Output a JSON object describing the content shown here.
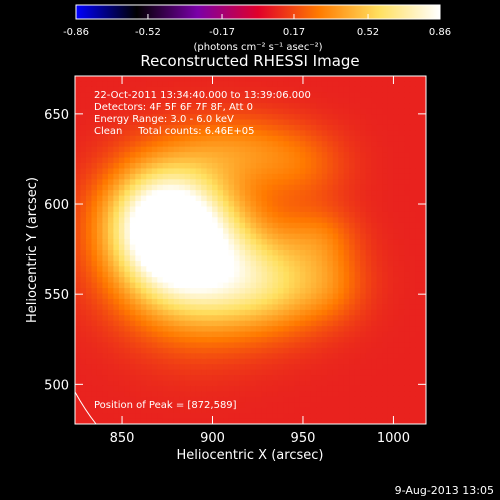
{
  "chart_data": {
    "type": "heatmap",
    "title": "Reconstructed RHESSI Image",
    "xlabel": "Heliocentric X (arcsec)",
    "ylabel": "Heliocentric Y (arcsec)",
    "xlim": [
      824,
      1018
    ],
    "ylim": [
      478,
      671
    ],
    "x_ticks": [
      850,
      900,
      950,
      1000
    ],
    "y_ticks": [
      500,
      550,
      600,
      650
    ],
    "colorbar": {
      "min": -0.86,
      "max": 0.86,
      "ticks": [
        "-0.86",
        "-0.52",
        "-0.17",
        "0.17",
        "0.52",
        "0.86"
      ],
      "units_label": "(photons cm⁻² s⁻¹ asec⁻²)",
      "colormap": [
        "#0000ff",
        "#000000",
        "#7a00a8",
        "#e0002a",
        "#ff7a00",
        "#ffe060",
        "#ffffff"
      ]
    },
    "info_lines": [
      "22-Oct-2011 13:34:40.000 to 13:39:06.000",
      "Detectors: 4F 5F 6F 7F 8F, Att 0",
      "Energy Range: 3.0 - 6.0 keV",
      "Clean     Total counts: 6.46E+05"
    ],
    "peak_text": "Position of Peak = [872,589]",
    "peak": [
      872,
      589
    ],
    "background_level": 0.08,
    "source_components": [
      {
        "x": 872,
        "y": 590,
        "sx": 22,
        "sy": 22,
        "amp": 0.74
      },
      {
        "x": 888,
        "y": 575,
        "sx": 26,
        "sy": 30,
        "amp": 0.42
      },
      {
        "x": 905,
        "y": 560,
        "sx": 34,
        "sy": 22,
        "amp": 0.35
      },
      {
        "x": 935,
        "y": 555,
        "sx": 22,
        "sy": 18,
        "amp": 0.22
      },
      {
        "x": 915,
        "y": 630,
        "sx": 26,
        "sy": 14,
        "amp": 0.22
      },
      {
        "x": 950,
        "y": 620,
        "sx": 18,
        "sy": 14,
        "amp": 0.12
      },
      {
        "x": 965,
        "y": 555,
        "sx": 14,
        "sy": 14,
        "amp": 0.12
      },
      {
        "x": 960,
        "y": 582,
        "sx": 14,
        "sy": 12,
        "amp": 0.14
      }
    ]
  },
  "timestamp": "9-Aug-2013 13:05"
}
